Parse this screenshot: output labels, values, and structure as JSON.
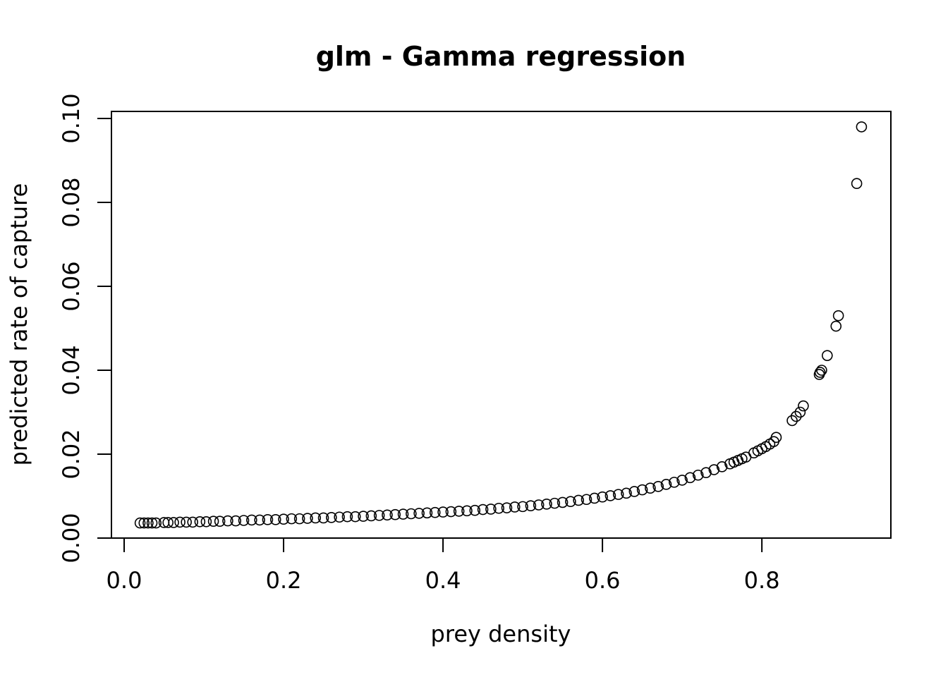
{
  "chart_data": {
    "type": "scatter",
    "title": "glm - Gamma regression",
    "xlabel": "prey density",
    "ylabel": "predicted rate of capture",
    "xlim": [
      0.0,
      0.95
    ],
    "ylim": [
      0.0,
      0.1
    ],
    "x_ticks": [
      0.0,
      0.2,
      0.4,
      0.6,
      0.8
    ],
    "x_tick_labels": [
      "0.0",
      "0.2",
      "0.4",
      "0.6",
      "0.8"
    ],
    "y_ticks": [
      0.0,
      0.02,
      0.04,
      0.06,
      0.08,
      0.1
    ],
    "y_tick_labels": [
      "0.00",
      "0.02",
      "0.04",
      "0.06",
      "0.08",
      "0.10"
    ],
    "grid": false,
    "marker": "open-circle",
    "colors": {
      "marker": "#000000",
      "axes": "#000000",
      "background": "#ffffff"
    },
    "series": [
      {
        "x": [
          0.02,
          0.025,
          0.03,
          0.035,
          0.04,
          0.05,
          0.055,
          0.062,
          0.07,
          0.078,
          0.086,
          0.095,
          0.103,
          0.112,
          0.12,
          0.13,
          0.14,
          0.15,
          0.16,
          0.17,
          0.18,
          0.19,
          0.2,
          0.21,
          0.22,
          0.23,
          0.24,
          0.25,
          0.26,
          0.27,
          0.28,
          0.29,
          0.3,
          0.31,
          0.32,
          0.33,
          0.34,
          0.35,
          0.36,
          0.37,
          0.38,
          0.39,
          0.4,
          0.41,
          0.42,
          0.43,
          0.44,
          0.45,
          0.46,
          0.47,
          0.48,
          0.49,
          0.5,
          0.51,
          0.52,
          0.53,
          0.54,
          0.55,
          0.56,
          0.57,
          0.58,
          0.59,
          0.6,
          0.61,
          0.62,
          0.63,
          0.64,
          0.65,
          0.66,
          0.67,
          0.68,
          0.69,
          0.7,
          0.71,
          0.72,
          0.73,
          0.74,
          0.75,
          0.76,
          0.765,
          0.77,
          0.775,
          0.78,
          0.79,
          0.795,
          0.8,
          0.805,
          0.81,
          0.815,
          0.818,
          0.838,
          0.843,
          0.848,
          0.852,
          0.872,
          0.873,
          0.875,
          0.882,
          0.893,
          0.896,
          0.919,
          0.925
        ],
        "y": [
          0.0036,
          0.0036,
          0.0036,
          0.0036,
          0.0036,
          0.0037,
          0.0037,
          0.0037,
          0.0038,
          0.0038,
          0.0038,
          0.0039,
          0.0039,
          0.004,
          0.004,
          0.0041,
          0.0041,
          0.0042,
          0.0043,
          0.0043,
          0.0044,
          0.0044,
          0.0045,
          0.0046,
          0.0046,
          0.0047,
          0.0048,
          0.0048,
          0.0049,
          0.005,
          0.0051,
          0.0051,
          0.0052,
          0.0053,
          0.0054,
          0.0055,
          0.0056,
          0.0057,
          0.0058,
          0.0059,
          0.006,
          0.0061,
          0.0062,
          0.0063,
          0.0064,
          0.0065,
          0.0066,
          0.0068,
          0.0069,
          0.0071,
          0.0072,
          0.0074,
          0.0075,
          0.0077,
          0.0079,
          0.0081,
          0.0083,
          0.0085,
          0.0087,
          0.009,
          0.0092,
          0.0095,
          0.0098,
          0.0101,
          0.0104,
          0.0107,
          0.0111,
          0.0115,
          0.0119,
          0.0123,
          0.0128,
          0.0133,
          0.0138,
          0.0144,
          0.015,
          0.0156,
          0.0163,
          0.017,
          0.0177,
          0.0181,
          0.0185,
          0.0189,
          0.0193,
          0.0203,
          0.0208,
          0.0213,
          0.0218,
          0.0224,
          0.023,
          0.024,
          0.028,
          0.029,
          0.03,
          0.0315,
          0.039,
          0.0395,
          0.04,
          0.0435,
          0.0505,
          0.053,
          0.0845,
          0.098
        ]
      }
    ]
  }
}
